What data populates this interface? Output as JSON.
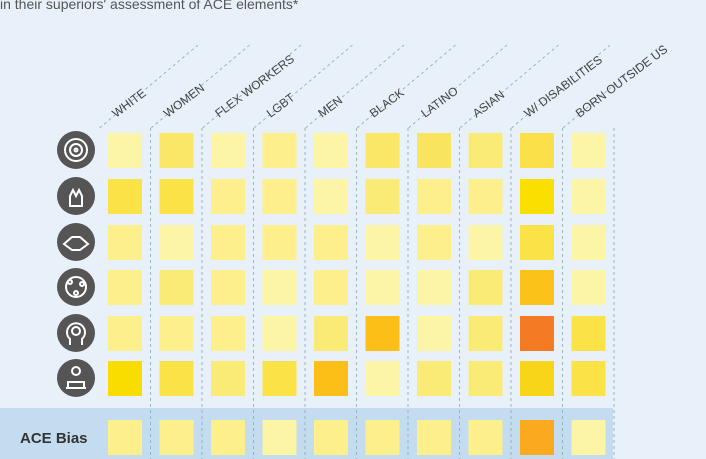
{
  "chart_data": {
    "type": "heatmap",
    "subtitle": "in their superiors' assessment of ACE elements*",
    "categories": [
      "WHITE",
      "WOMEN",
      "FLEX WORKERS",
      "LGBT",
      "MEN",
      "BLACK",
      "LATINO",
      "ASIAN",
      "W/ DISABILITIES",
      "BORN OUTSIDE US"
    ],
    "rows": [
      null,
      null,
      null,
      null,
      null,
      null,
      "ACE Bias"
    ],
    "colors": [
      [
        "#fdf5a6",
        "#fbe766",
        "#fdf5a6",
        "#fcef8c",
        "#fdf5a6",
        "#fbe766",
        "#f8e45e",
        "#faeb76",
        "#fbe04a",
        "#fdf5a6"
      ],
      [
        "#fbe347",
        "#fbe347",
        "#fcef8c",
        "#fcef8c",
        "#fdf5a6",
        "#faeb76",
        "#fcef8c",
        "#fcef8c",
        "#f9e000",
        "#fdf5a6"
      ],
      [
        "#fcef8c",
        "#fdf5a6",
        "#fcef8c",
        "#fcef8c",
        "#fcef8c",
        "#fdf5a6",
        "#fcef8c",
        "#fdf5a6",
        "#fbe347",
        "#fdf5a6"
      ],
      [
        "#fcef8c",
        "#faeb76",
        "#fcef8c",
        "#fdf5a6",
        "#fcef8c",
        "#fdf5a6",
        "#fdf5a6",
        "#faeb76",
        "#fbc21a",
        "#fdf5a6"
      ],
      [
        "#fcef8c",
        "#fcef8c",
        "#fcef8c",
        "#fdf5a6",
        "#faeb76",
        "#fbbf18",
        "#fdf5a6",
        "#faeb76",
        "#f47a23",
        "#fbe347"
      ],
      [
        "#f9dd00",
        "#fbe347",
        "#faeb76",
        "#fbe347",
        "#fbbf18",
        "#fdf5a6",
        "#faeb76",
        "#faeb76",
        "#f9d51a",
        "#fbe347"
      ],
      [
        "#fcef8c",
        "#fcef8c",
        "#fcef8c",
        "#fdf5a6",
        "#fcef8c",
        "#fcef8c",
        "#fcef8c",
        "#fcef8c",
        "#fba91e",
        "#fdf5a6"
      ]
    ]
  }
}
